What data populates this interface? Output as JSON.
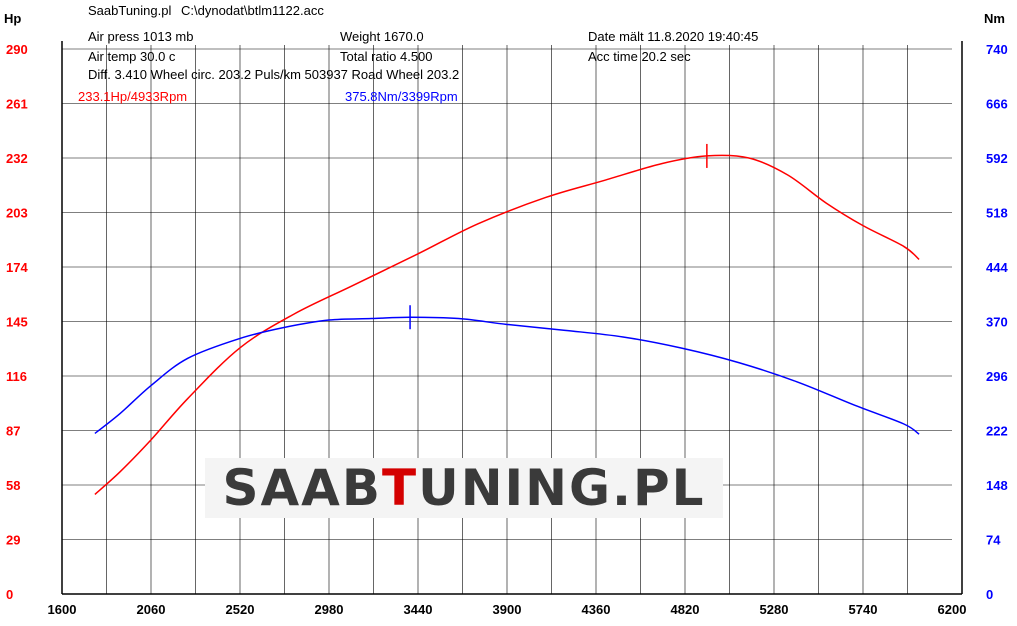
{
  "header": {
    "app": "SaabTuning.pl",
    "file": "C:\\dynodat\\btlm1122.acc",
    "air_press": "Air press  1013 mb",
    "weight": "Weight   1670.0",
    "date": "Date mält 11.8.2020 19:40:45",
    "air_temp": "Air temp  30.0 c",
    "total_ratio": "Total ratio 4.500",
    "acc_time": "Acc time  20.2 sec",
    "diff_line": "Diff.     3.410  Wheel circ. 203.2  Puls/km  503937  Road Wheel 203.2"
  },
  "peaks": {
    "hp_label": "233.1Hp/4933Rpm",
    "nm_label": "375.8Nm/3399Rpm"
  },
  "logo": {
    "part1": "SAAB",
    "part2": "T",
    "part3": "UNING.PL"
  },
  "colors": {
    "power": "#ff0000",
    "torque": "#0000ff",
    "grid": "#000000",
    "axis_left_text": "#ff0000",
    "axis_right_text": "#0000ff"
  },
  "chart_data": {
    "type": "line",
    "xlim": [
      1600,
      6200
    ],
    "x_ticks": [
      1600,
      2060,
      2520,
      2980,
      3440,
      3900,
      4360,
      4820,
      5280,
      5740,
      6200
    ],
    "y_left_label": "Hp",
    "y_right_label": "Nm",
    "y_left_lim": [
      0,
      290
    ],
    "y_right_lim": [
      0,
      740
    ],
    "y_left_ticks": [
      0,
      29,
      58,
      87,
      116,
      145,
      174,
      203,
      232,
      261,
      290
    ],
    "y_right_ticks": [
      0,
      74,
      148,
      222,
      296,
      370,
      444,
      518,
      592,
      666,
      740
    ],
    "grid": true,
    "series": [
      {
        "name": "Hp",
        "axis": "left",
        "x": [
          1770,
          1900,
          2060,
          2250,
          2520,
          2800,
          3100,
          3440,
          3750,
          4100,
          4400,
          4700,
          4933,
          5150,
          5350,
          5550,
          5740,
          5950,
          6030
        ],
        "y": [
          53,
          65,
          82,
          104,
          131,
          149,
          164,
          181,
          197,
          211,
          220,
          229,
          233.1,
          232,
          223,
          208,
          196,
          185,
          178
        ]
      },
      {
        "name": "Nm",
        "axis": "right",
        "x": [
          1770,
          1900,
          2060,
          2250,
          2520,
          2750,
          2980,
          3200,
          3399,
          3650,
          3900,
          4200,
          4500,
          4800,
          5100,
          5400,
          5700,
          5950,
          6030
        ],
        "y": [
          218,
          245,
          283,
          320,
          347,
          362,
          372,
          374,
          375.8,
          374,
          366,
          358,
          349,
          334,
          314,
          288,
          256,
          231,
          217
        ]
      }
    ],
    "markers": [
      {
        "series": "Hp",
        "x": 4933,
        "y": 233.1
      },
      {
        "series": "Nm",
        "x": 3399,
        "y": 375.8
      }
    ]
  }
}
